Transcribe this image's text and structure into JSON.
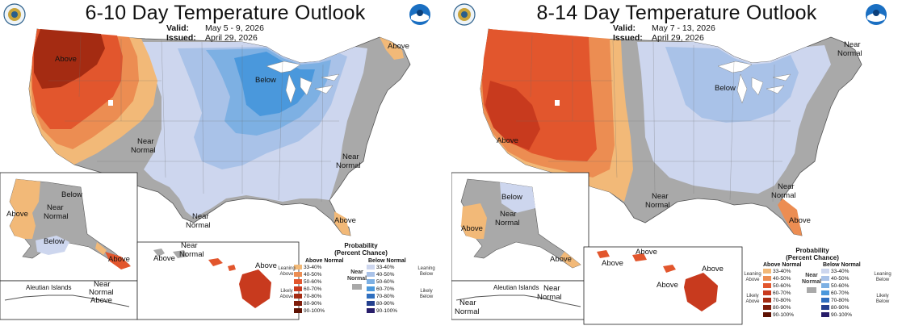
{
  "colors": {
    "above": [
      "#f2b978",
      "#ec8d52",
      "#e2562d",
      "#c83a1e",
      "#a42b12",
      "#7e1c0a",
      "#5e1203"
    ],
    "below": [
      "#cdd6ee",
      "#a9c2e8",
      "#7db0e3",
      "#4a98dc",
      "#2f6fbf",
      "#24408f",
      "#281d6a"
    ],
    "normal": "#a9a9a9"
  },
  "panels": [
    {
      "title": "6-10 Day Temperature Outlook",
      "valid_key": "Valid:",
      "valid": "May 5 - 9, 2026",
      "issued_key": "Issued:",
      "issued": "April 29, 2026",
      "labels": {
        "west_above": "Above",
        "ne_above": "Above",
        "below": "Below",
        "near": "Near",
        "normal": "Normal",
        "east_near": "Near",
        "east_normal": "Normal",
        "tx_near": "Near",
        "tx_normal": "Normal",
        "fl_above": "Above",
        "ak_below": "Below",
        "ak_near": "Near",
        "ak_normal": "Normal",
        "ak_above": "Above",
        "ak_below2": "Below",
        "ak_above2": "Above",
        "aleutian": "Aleutian Islands",
        "aleut_near": "Near",
        "aleut_normal": "Normal",
        "aleut_above": "Above",
        "hi_near": "Near",
        "hi_normal": "Normal",
        "hi_above1": "Above",
        "hi_above2": "Above"
      }
    },
    {
      "title": "8-14 Day Temperature Outlook",
      "valid_key": "Valid:",
      "valid": "May 7 - 13, 2026",
      "issued_key": "Issued:",
      "issued": "April 29, 2026",
      "labels": {
        "ne_near": "Near",
        "ne_normal": "Normal",
        "below": "Below",
        "west_above": "Above",
        "near": "Near",
        "normal": "Normal",
        "se_near": "Near",
        "se_normal": "Normal",
        "fl_above": "Above",
        "ak_below": "Below",
        "ak_near": "Near",
        "ak_normal": "Normal",
        "ak_above": "Above",
        "ak_above2": "Above",
        "aleutian": "Aleutian Islands",
        "aleut_near": "Near",
        "aleut_normal": "Normal",
        "aleut_near2": "Near",
        "aleut_normal2": "Normal",
        "hi_above1": "Above",
        "hi_above2": "Above",
        "hi_above3": "Above",
        "hi_above4": "Above"
      }
    }
  ],
  "legend": {
    "title": "Probability",
    "subtitle": "(Percent Chance)",
    "above_head": "Above Normal",
    "below_head": "Below Normal",
    "near": "Near",
    "normal": "Normal",
    "leaning": "Leaning",
    "above_word": "Above",
    "below_word": "Below",
    "likely": "Likely",
    "bins": [
      "33-40%",
      "40-50%",
      "50-60%",
      "60-70%",
      "70-80%",
      "80-90%",
      "90-100%"
    ]
  }
}
